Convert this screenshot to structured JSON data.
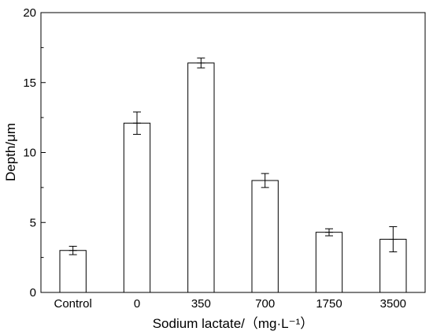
{
  "chart_data": {
    "type": "bar",
    "categories": [
      "Control",
      "0",
      "350",
      "700",
      "1750",
      "3500"
    ],
    "values": [
      3.0,
      12.1,
      16.4,
      8.0,
      4.3,
      3.8
    ],
    "errors": [
      0.3,
      0.8,
      0.35,
      0.5,
      0.25,
      0.9
    ],
    "xlabel": "Sodium lactate/（mg·L⁻¹）",
    "ylabel": "Depth/μm",
    "ylim": [
      0,
      20
    ],
    "yticks": [
      0,
      5,
      10,
      15,
      20
    ],
    "grid": false,
    "bar_fill": "#ffffff",
    "bar_stroke": "#000000"
  }
}
